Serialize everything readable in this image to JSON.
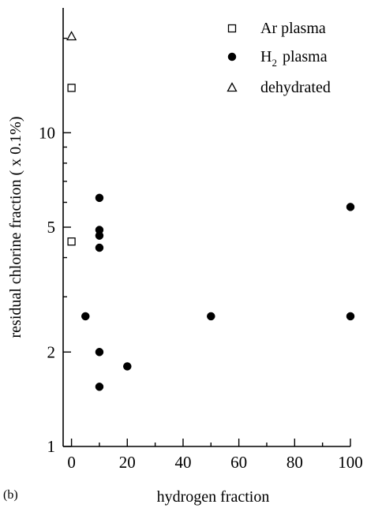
{
  "panel_label": "(b)",
  "chart_data": {
    "type": "scatter",
    "title": "",
    "xlabel": "hydrogen fraction",
    "ylabel": "residual chlorine fraction ( x 0.1%)",
    "x_scale": "linear",
    "y_scale": "log",
    "xlim": [
      -3,
      100
    ],
    "ylim": [
      1,
      25
    ],
    "x_ticks": [
      0,
      20,
      40,
      60,
      80,
      100
    ],
    "y_ticks": [
      1,
      2,
      5,
      10
    ],
    "y_minor_ticks": [
      3,
      4,
      6,
      7,
      8,
      9,
      20
    ],
    "grid": false,
    "legend_position": "top-right",
    "series": [
      {
        "name": "Ar plasma",
        "legend_parts": [
          "Ar plasma"
        ],
        "marker": "open-square",
        "points": [
          [
            0,
            13.9
          ],
          [
            0,
            4.5
          ]
        ]
      },
      {
        "name": "H2 plasma",
        "legend_parts": [
          "H",
          "2",
          " plasma"
        ],
        "marker": "filled-circle",
        "points": [
          [
            10,
            6.2
          ],
          [
            10,
            4.9
          ],
          [
            10,
            4.7
          ],
          [
            10,
            4.3
          ],
          [
            5,
            2.6
          ],
          [
            10,
            2.0
          ],
          [
            10,
            1.55
          ],
          [
            20,
            1.8
          ],
          [
            50,
            2.6
          ],
          [
            100,
            5.8
          ],
          [
            100,
            2.6
          ]
        ]
      },
      {
        "name": "dehydrated",
        "legend_parts": [
          "dehydrated"
        ],
        "marker": "open-triangle",
        "points": [
          [
            0,
            20.3
          ]
        ]
      }
    ]
  }
}
